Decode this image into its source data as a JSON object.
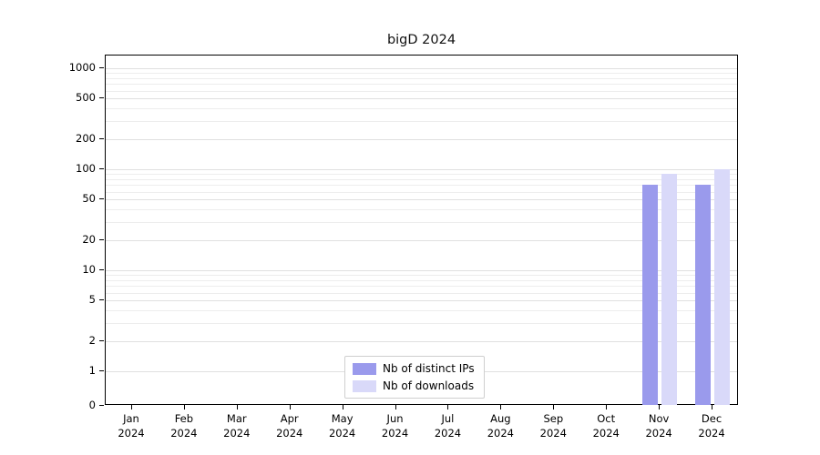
{
  "chart_data": {
    "type": "bar",
    "title": "bigD 2024",
    "scale": "symlog",
    "grid": true,
    "legend_position": "bottom-center",
    "categories": [
      "Jan",
      "Feb",
      "Mar",
      "Apr",
      "May",
      "Jun",
      "Jul",
      "Aug",
      "Sep",
      "Oct",
      "Nov",
      "Dec"
    ],
    "year_label": "2024",
    "y_ticks": [
      0,
      1,
      2,
      5,
      10,
      20,
      50,
      100,
      200,
      500,
      1000
    ],
    "ylim": [
      0,
      1000
    ],
    "series": [
      {
        "name": "Nb of distinct IPs",
        "color": "#9a9aec",
        "values": [
          0,
          0,
          0,
          0,
          0,
          0,
          0,
          0,
          0,
          0,
          70,
          70
        ]
      },
      {
        "name": "Nb of downloads",
        "color": "#d9d9f9",
        "values": [
          0,
          0,
          0,
          0,
          0,
          0,
          0,
          0,
          0,
          0,
          90,
          100
        ]
      }
    ]
  }
}
